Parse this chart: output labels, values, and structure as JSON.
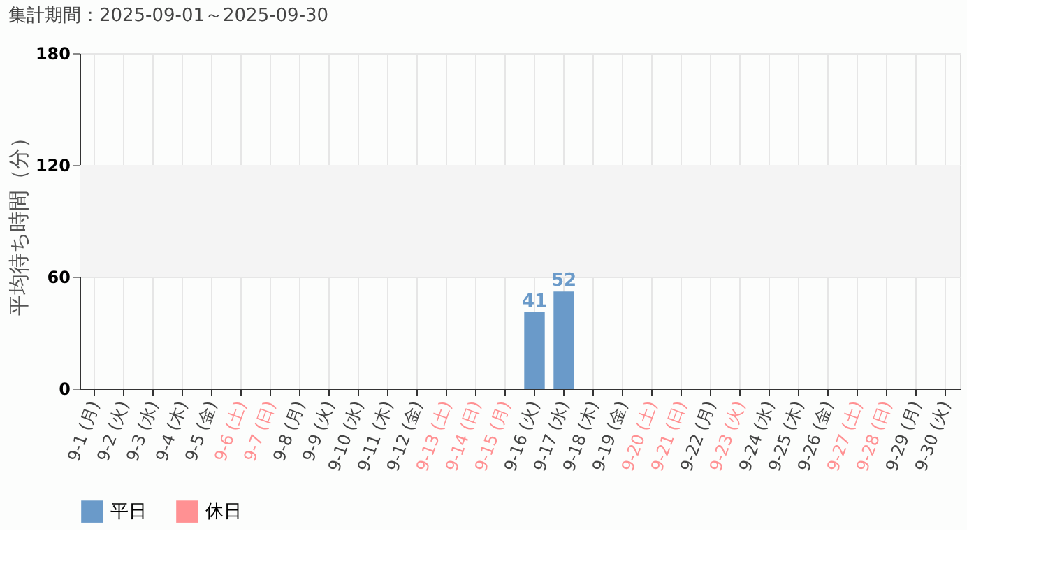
{
  "chart_data": {
    "type": "bar",
    "title": "集計期間：2025-09-01～2025-09-30",
    "ylabel": "平均待ち時間（分）",
    "categories": [
      "9-1 (月)",
      "9-2 (火)",
      "9-3 (水)",
      "9-4 (木)",
      "9-5 (金)",
      "9-6 (土)",
      "9-7 (日)",
      "9-8 (月)",
      "9-9 (火)",
      "9-10 (水)",
      "9-11 (木)",
      "9-12 (金)",
      "9-13 (土)",
      "9-14 (日)",
      "9-15 (月)",
      "9-16 (火)",
      "9-17 (水)",
      "9-18 (木)",
      "9-19 (金)",
      "9-20 (土)",
      "9-21 (日)",
      "9-22 (月)",
      "9-23 (火)",
      "9-24 (水)",
      "9-25 (木)",
      "9-26 (金)",
      "9-27 (土)",
      "9-28 (日)",
      "9-29 (月)",
      "9-30 (火)"
    ],
    "colors": [
      "#6a9ac9",
      "#6a9ac9",
      "#6a9ac9",
      "#6a9ac9",
      "#6a9ac9",
      "#ff9193",
      "#ff9193",
      "#6a9ac9",
      "#6a9ac9",
      "#6a9ac9",
      "#6a9ac9",
      "#6a9ac9",
      "#ff9193",
      "#ff9193",
      "#ff9193",
      "#6a9ac9",
      "#6a9ac9",
      "#6a9ac9",
      "#6a9ac9",
      "#ff9193",
      "#ff9193",
      "#6a9ac9",
      "#ff9193",
      "#6a9ac9",
      "#6a9ac9",
      "#6a9ac9",
      "#ff9193",
      "#ff9193",
      "#6a9ac9",
      "#6a9ac9"
    ],
    "series": [
      {
        "name": "平日",
        "color": "#6a9ac9",
        "values": [
          null,
          null,
          null,
          null,
          null,
          null,
          null,
          null,
          null,
          null,
          null,
          null,
          null,
          null,
          null,
          41,
          52,
          null,
          null,
          null,
          null,
          null,
          null,
          null,
          null,
          null,
          null,
          null,
          null,
          null
        ]
      },
      {
        "name": "休日",
        "color": "#ff9193",
        "values": [
          null,
          null,
          null,
          null,
          null,
          null,
          null,
          null,
          null,
          null,
          null,
          null,
          null,
          null,
          null,
          null,
          null,
          null,
          null,
          null,
          null,
          null,
          null,
          null,
          null,
          null,
          null,
          null,
          null,
          null
        ]
      }
    ],
    "ylim": [
      0,
      180
    ],
    "yticks": [
      0,
      60,
      120,
      180
    ],
    "bands": [
      {
        "axis": "y",
        "from": 60,
        "to": 120,
        "color": "#f4f4f4"
      }
    ],
    "data_labels": true,
    "grid": true,
    "legend": "bottom left"
  }
}
